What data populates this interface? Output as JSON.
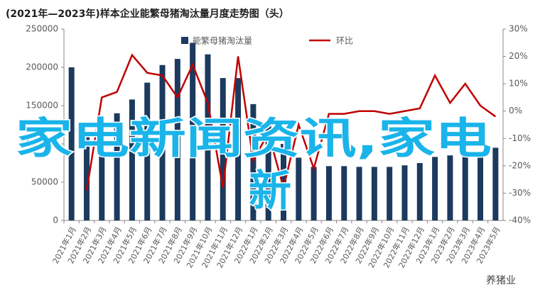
{
  "chart_data": {
    "type": "bar-line",
    "title": "(2021年—2023年)样本企业能繁母猪淘汰量月度走势图（头）",
    "categories": [
      "2021年1月",
      "2021年2月",
      "2021年3月",
      "2021年4月",
      "2021年5月",
      "2021年6月",
      "2021年7月",
      "2021年8月",
      "2021年9月",
      "2021年10月",
      "2021年11月",
      "2021年12月",
      "2022年1月",
      "2022年2月",
      "2022年3月",
      "2022年4月",
      "2022年5月",
      "2022年6月",
      "2022年7月",
      "2022年8月",
      "2022年9月",
      "2022年10月",
      "2022年11月",
      "2022年12月",
      "2023年1月",
      "2023年2月",
      "2023年3月",
      "2023年4月",
      "2023年5月"
    ],
    "series": [
      {
        "name": "能繁母猪淘汰量",
        "type": "bar",
        "color": "#1b3a5e",
        "values": [
          200000,
          110000,
          130000,
          140000,
          158000,
          180000,
          203000,
          211000,
          232000,
          217000,
          186000,
          186000,
          152000,
          130000,
          100000,
          82000,
          70000,
          71000,
          71000,
          70000,
          70000,
          70000,
          72000,
          75000,
          83000,
          85000,
          88000,
          90000,
          95000
        ]
      },
      {
        "name": "环比",
        "type": "line",
        "axis": "y2",
        "color": "#c00000",
        "values": [
          null,
          -29,
          5,
          7,
          20.5,
          14,
          13,
          5,
          17,
          3,
          -28,
          20,
          -18,
          -8,
          -28,
          -5,
          -21,
          -1,
          -1,
          0,
          0,
          -1,
          0,
          1,
          13,
          3,
          10,
          2,
          -2
        ]
      }
    ],
    "ylim": [
      0,
      250000
    ],
    "yticks": [
      0,
      50000,
      100000,
      150000,
      200000,
      250000
    ],
    "y2lim": [
      -40,
      30
    ],
    "y2ticks": [
      {
        "value": -40,
        "label": "-40%"
      },
      {
        "value": -30,
        "label": "-30%"
      },
      {
        "value": -20,
        "label": "-20%"
      },
      {
        "value": -10,
        "label": "-10%"
      },
      {
        "value": 0,
        "label": "0%"
      },
      {
        "value": 10,
        "label": "10%"
      },
      {
        "value": 20,
        "label": "20%"
      },
      {
        "value": 30,
        "label": "30%"
      }
    ],
    "overlay_text": [
      "家电新闻资讯,家电",
      "新"
    ],
    "watermark": "养猪业"
  }
}
